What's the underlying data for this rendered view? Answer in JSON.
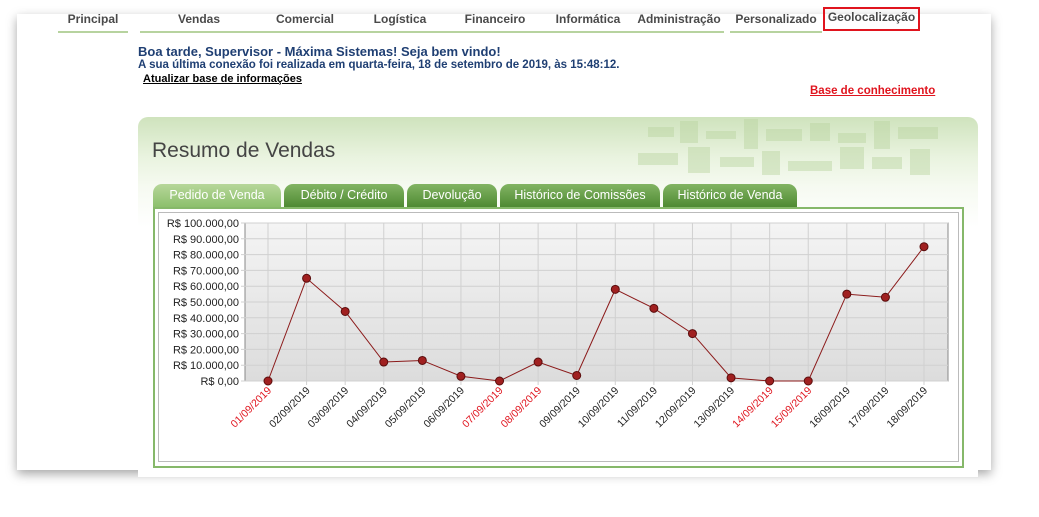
{
  "nav": {
    "items": [
      "Principal",
      "Vendas",
      "Comercial",
      "Logística",
      "Financeiro",
      "Informática",
      "Administração",
      "Personalizado",
      "Geolocalização"
    ]
  },
  "header": {
    "greeting": "Boa tarde, Supervisor - Máxima Sistemas! Seja bem vindo!",
    "last_connection": "A sua última conexão foi realizada em quarta-feira, 18 de setembro de 2019, às 15:48:12.",
    "update_link": "Atualizar base de informações",
    "knowledge_link": "Base de conhecimento"
  },
  "panel": {
    "title": "Resumo de Vendas"
  },
  "tabs": [
    "Pedido de Venda",
    "Débito / Crédito",
    "Devolução",
    "Histórico de Comissões",
    "Histórico de Venda"
  ],
  "colors": {
    "accent_green": "#5c9a3c",
    "highlight_red": "#e0141e",
    "series": "#8b1a1a"
  },
  "chart_data": {
    "type": "line",
    "y_tick_labels": [
      "R$ 100.000,00",
      "R$ 90.000,00",
      "R$ 80.000,00",
      "R$ 70.000,00",
      "R$ 60.000,00",
      "R$ 50.000,00",
      "R$ 40.000,00",
      "R$ 30.000,00",
      "R$ 20.000,00",
      "R$ 10.000,00",
      "R$ 0,00"
    ],
    "ylim": [
      0,
      100000
    ],
    "grid": true,
    "categories": [
      "01/09/2019",
      "02/09/2019",
      "03/09/2019",
      "04/09/2019",
      "05/09/2019",
      "06/09/2019",
      "07/09/2019",
      "08/09/2019",
      "09/09/2019",
      "10/09/2019",
      "11/09/2019",
      "12/09/2019",
      "13/09/2019",
      "14/09/2019",
      "15/09/2019",
      "16/09/2019",
      "17/09/2019",
      "18/09/2019"
    ],
    "highlighted_categories": [
      "01/09/2019",
      "07/09/2019",
      "08/09/2019",
      "14/09/2019",
      "15/09/2019"
    ],
    "values": [
      0,
      65000,
      44000,
      12000,
      13000,
      3000,
      0,
      12000,
      3500,
      58000,
      46000,
      30000,
      2000,
      0,
      0,
      55000,
      53000,
      85000
    ]
  }
}
